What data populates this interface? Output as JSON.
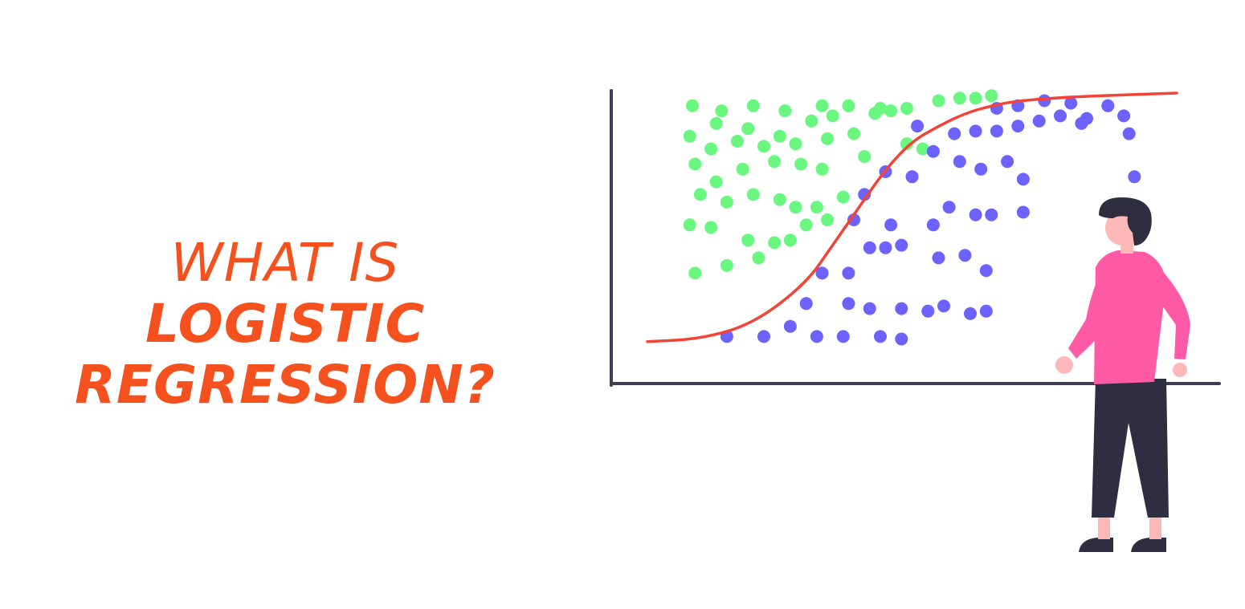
{
  "title": {
    "line1": "WHAT IS",
    "line2": "LOGISTIC",
    "line3": "REGRESSION?"
  },
  "colors": {
    "title": "#f4511e",
    "axis": "#3f3d56",
    "curve": "#f44336",
    "class_a": "#69f77f",
    "class_b": "#6c63ff",
    "person_shirt": "#ff5aa5",
    "person_skin": "#ffb8b8",
    "person_dark": "#2f2e41"
  },
  "chart_data": {
    "type": "scatter",
    "title": "",
    "xlabel": "",
    "ylabel": "",
    "xlim": [
      0,
      100
    ],
    "ylim": [
      0,
      100
    ],
    "grid": false,
    "curve": {
      "name": "",
      "type": "sigmoid",
      "x": [
        0,
        10,
        20,
        30,
        35,
        40,
        45,
        50,
        55,
        60,
        65,
        70,
        80,
        90,
        100
      ],
      "y": [
        2,
        3,
        9,
        25,
        40,
        55,
        70,
        81,
        87,
        92,
        95,
        97,
        98.5,
        99.3,
        100
      ]
    },
    "series": [
      {
        "name": "",
        "points": [
          [
            8.5,
            95
          ],
          [
            14,
            93
          ],
          [
            20,
            95
          ],
          [
            26,
            93
          ],
          [
            33,
            95
          ],
          [
            38,
            95
          ],
          [
            44,
            94
          ],
          [
            13,
            88
          ],
          [
            19,
            86
          ],
          [
            25,
            83
          ],
          [
            31,
            89
          ],
          [
            35,
            91
          ],
          [
            43,
            92
          ],
          [
            46,
            93
          ],
          [
            49,
            94
          ],
          [
            8,
            83
          ],
          [
            12,
            78
          ],
          [
            17,
            81
          ],
          [
            22,
            79
          ],
          [
            28,
            80
          ],
          [
            34,
            82
          ],
          [
            39,
            84
          ],
          [
            9,
            72
          ],
          [
            13,
            65
          ],
          [
            18,
            70
          ],
          [
            24,
            73
          ],
          [
            29,
            72
          ],
          [
            33,
            70
          ],
          [
            41,
            75
          ],
          [
            10,
            60
          ],
          [
            15,
            57
          ],
          [
            20,
            60
          ],
          [
            25,
            58
          ],
          [
            28,
            55
          ],
          [
            32,
            55
          ],
          [
            37,
            59
          ],
          [
            8,
            48
          ],
          [
            12,
            47
          ],
          [
            19,
            42
          ],
          [
            24,
            41
          ],
          [
            27,
            42
          ],
          [
            30,
            48
          ],
          [
            34,
            50
          ],
          [
            9,
            29
          ],
          [
            15,
            32
          ],
          [
            21,
            35
          ],
          [
            55,
            97
          ],
          [
            59,
            98
          ],
          [
            62,
            98
          ],
          [
            65,
            99
          ],
          [
            49,
            80
          ],
          [
            52,
            78
          ]
        ]
      },
      {
        "name": "",
        "points": [
          [
            15,
            4
          ],
          [
            22,
            4
          ],
          [
            27,
            8
          ],
          [
            32,
            4
          ],
          [
            37,
            4
          ],
          [
            44,
            4
          ],
          [
            48,
            3
          ],
          [
            30,
            17
          ],
          [
            38,
            17
          ],
          [
            42,
            15
          ],
          [
            48,
            15
          ],
          [
            53,
            14
          ],
          [
            56,
            16
          ],
          [
            61,
            13
          ],
          [
            64,
            14
          ],
          [
            33,
            29
          ],
          [
            38,
            29
          ],
          [
            42,
            39
          ],
          [
            45,
            39
          ],
          [
            48,
            40
          ],
          [
            55,
            35
          ],
          [
            60,
            36
          ],
          [
            64,
            30
          ],
          [
            39,
            50
          ],
          [
            41,
            60
          ],
          [
            46,
            48
          ],
          [
            54,
            48
          ],
          [
            57,
            55
          ],
          [
            62,
            52
          ],
          [
            65,
            52
          ],
          [
            71,
            53
          ],
          [
            45,
            69
          ],
          [
            50,
            67
          ],
          [
            54,
            77
          ],
          [
            59,
            73
          ],
          [
            63,
            70
          ],
          [
            68,
            73
          ],
          [
            71,
            66
          ],
          [
            51,
            87
          ],
          [
            58,
            84
          ],
          [
            62,
            85
          ],
          [
            66,
            85
          ],
          [
            70,
            87
          ],
          [
            74,
            89
          ],
          [
            78,
            91
          ],
          [
            82,
            88
          ],
          [
            66,
            94
          ],
          [
            70,
            95
          ],
          [
            75,
            97
          ],
          [
            80,
            96
          ],
          [
            83,
            90
          ],
          [
            87,
            95
          ],
          [
            90,
            91
          ],
          [
            91,
            84
          ],
          [
            92,
            67
          ]
        ]
      }
    ]
  }
}
